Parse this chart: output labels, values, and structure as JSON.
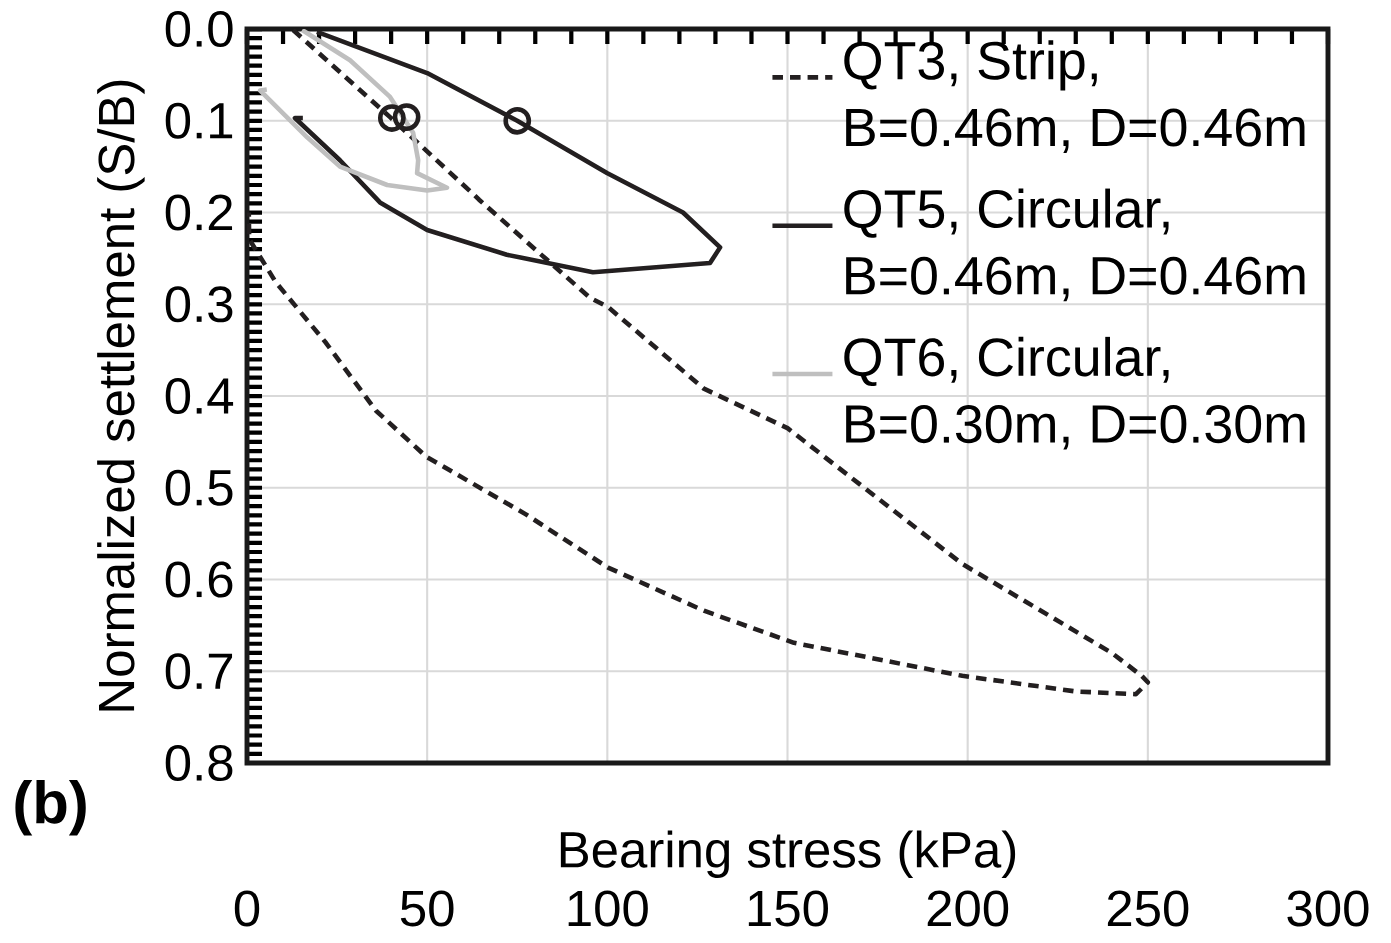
{
  "chart_data": {
    "type": "line",
    "xlabel": "Bearing stress (kPa)",
    "ylabel": "Normalized settlement (S/B)",
    "annotations": [
      "(b)"
    ],
    "xlim": [
      0,
      300
    ],
    "xticks": [
      0,
      50,
      100,
      150,
      200,
      250,
      300
    ],
    "ylim": [
      0.8,
      0
    ],
    "yticks": [
      {
        "value": 0,
        "label": "0.0"
      },
      {
        "value": 0.1,
        "label": "0.1"
      },
      {
        "value": 0.2,
        "label": "0.2"
      },
      {
        "value": 0.3,
        "label": "0.3"
      },
      {
        "value": 0.4,
        "label": "0.4"
      },
      {
        "value": 0.5,
        "label": "0.5"
      },
      {
        "value": 0.6,
        "label": "0.6"
      },
      {
        "value": 0.7,
        "label": "0.7"
      },
      {
        "value": 0.8,
        "label": "0.8"
      }
    ],
    "grid": true,
    "legend": "top right",
    "series": [
      {
        "name": "QT3, Strip, B=0.46m, D=0.46m",
        "color": "#231f20",
        "line_style": "dashed",
        "marker": "none",
        "x": [
          12.8,
          39.7,
          62.8,
          64.4,
          95.2,
          100.2,
          126.8,
          150,
          198.5,
          240,
          248.3,
          250,
          246.7,
          230,
          198.5,
          151.8,
          126.8,
          100.2,
          77.4,
          49.7,
          35.8,
          21.9,
          8.0,
          0.6,
          0.5
        ],
        "values": [
          0.001,
          0.096,
          0.18,
          0.186,
          0.293,
          0.303,
          0.392,
          0.435,
          0.583,
          0.68,
          0.705,
          0.712,
          0.725,
          0.722,
          0.705,
          0.669,
          0.634,
          0.587,
          0.529,
          0.466,
          0.416,
          0.342,
          0.276,
          0.229,
          0.2
        ]
      },
      {
        "name": "QT5, Circular, B=0.46m, D=0.46m",
        "color": "#231f20",
        "line_style": "solid",
        "marker": "none",
        "x": [
          19.4,
          50,
          75,
          99.9,
          121,
          131.3,
          128.5,
          96,
          72.1,
          50,
          36.9,
          25.8,
          13.3,
          15.5
        ],
        "values": [
          0.003,
          0.048,
          0.1,
          0.157,
          0.2,
          0.238,
          0.255,
          0.265,
          0.246,
          0.219,
          0.189,
          0.143,
          0.097,
          0.097
        ]
      },
      {
        "name": "QT6, Circular, B=0.30m, D=0.30m",
        "color": "#bfbfbf",
        "line_style": "solid",
        "marker": "none",
        "x": [
          15.3,
          28.6,
          39.7,
          46.1,
          47.5,
          47.2,
          55.5,
          50,
          38.9,
          25.8,
          16.7,
          3.6,
          5.5
        ],
        "values": [
          0.001,
          0.034,
          0.074,
          0.113,
          0.143,
          0.157,
          0.173,
          0.176,
          0.17,
          0.15,
          0.118,
          0.067,
          0.066
        ]
      },
      {
        "type": "scatter",
        "color": "#231f20",
        "marker": "circle",
        "x": [
          40.2,
          44.3,
          75
        ],
        "values": [
          0.097,
          0.096,
          0.1
        ]
      }
    ]
  }
}
